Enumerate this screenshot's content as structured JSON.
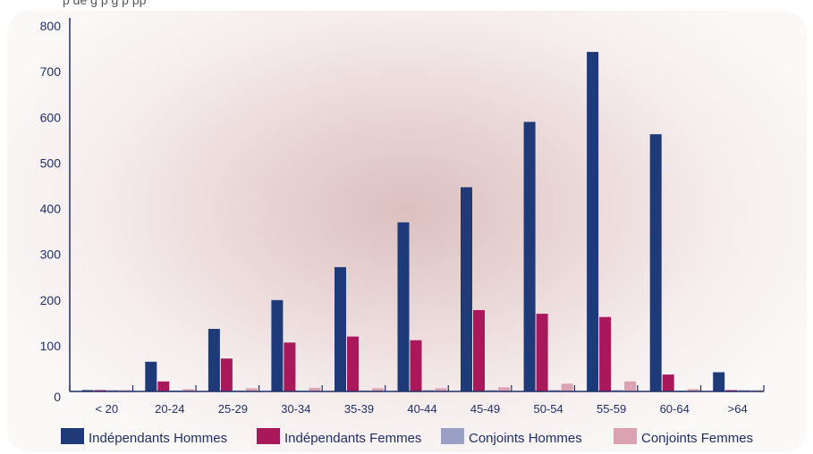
{
  "header": {
    "cropped_text": "p    de    g  p  g   p      pp"
  },
  "colors": {
    "independants_hommes": "#1f3a78",
    "independants_femmes": "#a8185a",
    "conjoints_hommes": "#9a9fc6",
    "conjoints_femmes": "#dba3b2",
    "axis": "#1e2f66"
  },
  "chart_data": {
    "type": "bar",
    "categories": [
      "< 20",
      "20-24",
      "25-29",
      "30-34",
      "35-39",
      "40-44",
      "45-49",
      "50-54",
      "55-59",
      "60-64",
      ">64"
    ],
    "series": [
      {
        "name": "Indépendants Hommes",
        "values": [
          0,
          65,
          137,
          200,
          272,
          370,
          447,
          590,
          743,
          563,
          42
        ]
      },
      {
        "name": "Indépendants Femmes",
        "values": [
          0,
          22,
          72,
          107,
          120,
          112,
          178,
          170,
          163,
          37,
          0
        ]
      },
      {
        "name": "Conjoints Hommes",
        "values": [
          0,
          2,
          2,
          2,
          2,
          3,
          3,
          3,
          3,
          2,
          0
        ]
      },
      {
        "name": "Conjoints Femmes",
        "values": [
          0,
          5,
          7,
          8,
          7,
          7,
          9,
          17,
          22,
          5,
          0
        ]
      }
    ],
    "yticks": [
      0,
      100,
      200,
      300,
      400,
      500,
      600,
      700,
      800
    ],
    "ylim": [
      0,
      800
    ],
    "grid": false,
    "legend_position": "bottom"
  }
}
